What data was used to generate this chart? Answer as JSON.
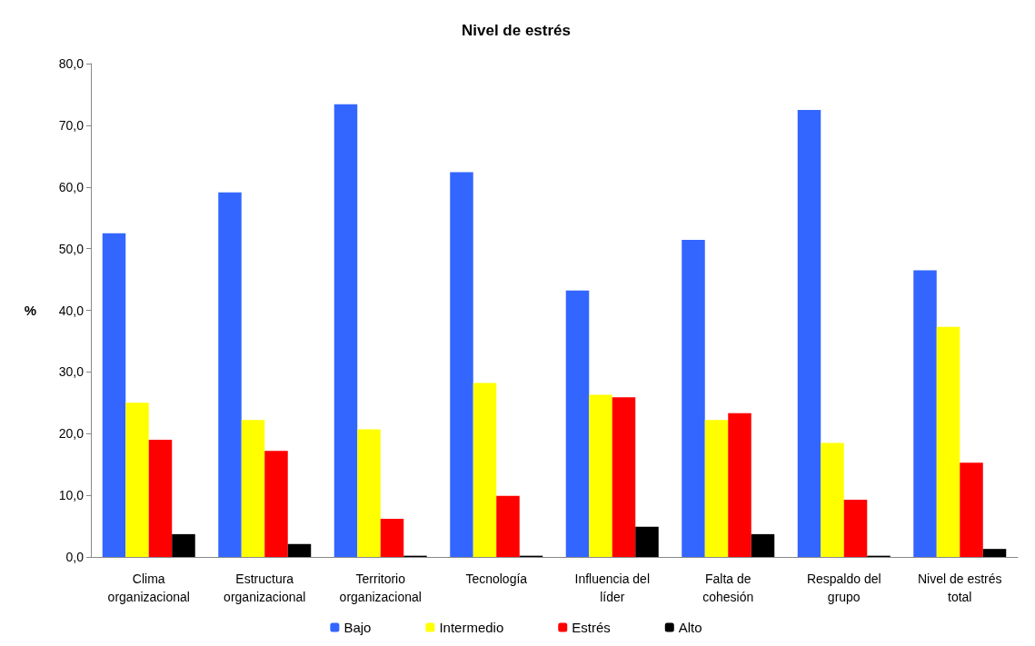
{
  "chart_data": {
    "type": "bar",
    "title": "Nivel de estrés",
    "ylabel": "%",
    "categories": [
      "Clima organizacional",
      "Estructura organizacional",
      "Territorio organizacional",
      "Tecnología",
      "Influencia del líder",
      "Falta de cohesión",
      "Respaldo del grupo",
      "Nivel de estrés total"
    ],
    "series": [
      {
        "name": "Bajo",
        "color": "#3366ff",
        "values": [
          52.5,
          59.1,
          73.4,
          62.4,
          43.2,
          51.4,
          72.5,
          46.5
        ]
      },
      {
        "name": "Intermedio",
        "color": "#ffff00",
        "values": [
          25.0,
          22.2,
          20.7,
          28.2,
          26.3,
          22.2,
          18.5,
          37.3
        ]
      },
      {
        "name": "Estrés",
        "color": "#ff0000",
        "values": [
          19.0,
          17.2,
          6.2,
          9.9,
          25.9,
          23.3,
          9.3,
          15.3
        ]
      },
      {
        "name": "Alto",
        "color": "#000000",
        "values": [
          3.7,
          2.1,
          0.2,
          0.2,
          4.9,
          3.7,
          0.2,
          1.3
        ]
      }
    ],
    "ylim": [
      0,
      80
    ],
    "yticks": [
      {
        "value": 0,
        "label": "0,0"
      },
      {
        "value": 10,
        "label": "10,0"
      },
      {
        "value": 20,
        "label": "20,0"
      },
      {
        "value": 30,
        "label": "30,0"
      },
      {
        "value": 40,
        "label": "40,0"
      },
      {
        "value": 50,
        "label": "50,0"
      },
      {
        "value": 60,
        "label": "60,0"
      },
      {
        "value": 70,
        "label": "70,0"
      },
      {
        "value": 80,
        "label": "80,0"
      }
    ],
    "grid": false,
    "legend": "bottom"
  }
}
